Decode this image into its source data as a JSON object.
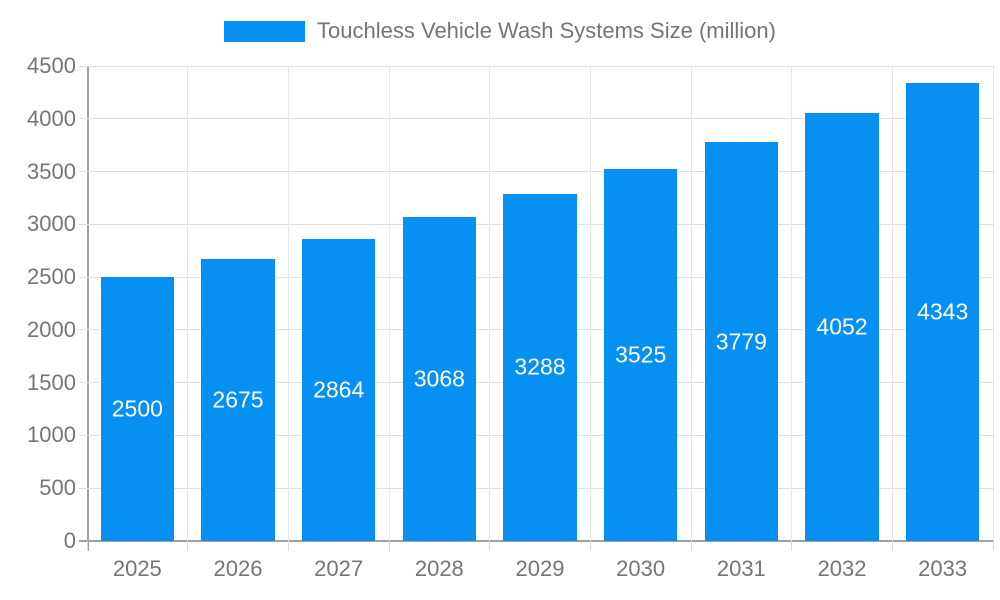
{
  "legend": {
    "label": "Touchless Vehicle Wash Systems Size (million)",
    "swatch_color": "#0690f2"
  },
  "chart_data": {
    "type": "bar",
    "title": "Touchless Vehicle Wash Systems Size (million)",
    "categories": [
      "2025",
      "2026",
      "2027",
      "2028",
      "2029",
      "2030",
      "2031",
      "2032",
      "2033"
    ],
    "values": [
      2500,
      2675,
      2864,
      3068,
      3288,
      3525,
      3779,
      4052,
      4343
    ],
    "xlabel": "",
    "ylabel": "",
    "ylim": [
      0,
      4500
    ],
    "ytick_step": 500,
    "ytick_labels": [
      "0",
      "500",
      "1000",
      "1500",
      "2000",
      "2500",
      "3000",
      "3500",
      "4000",
      "4500"
    ],
    "grid": true,
    "legend_position": "top",
    "bar_color": "#0690f2",
    "value_label_color": "#ffffff",
    "axis_color": "#a0a0a0",
    "grid_color": "#e0e0e0",
    "tick_text_color": "#757575"
  }
}
